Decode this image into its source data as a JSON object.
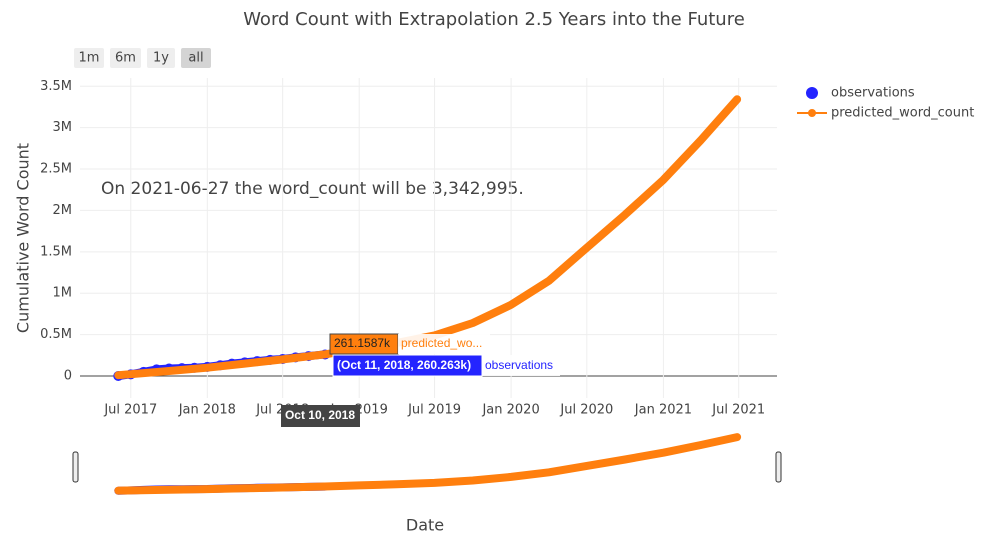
{
  "chart_data": {
    "type": "line",
    "title": "Word Count with Extrapolation 2.5 Years into the Future",
    "x_label": "Date",
    "y_label": "Cumulative Word Count",
    "annotation": "On 2021-06-27 the word_count will be 3,342,995.",
    "range_buttons": [
      "1m",
      "6m",
      "1y",
      "all"
    ],
    "series": [
      {
        "name": "observations",
        "color": "#2424ff",
        "x": [
          "2017-06",
          "2017-07",
          "2017-08",
          "2017-09",
          "2017-10",
          "2017-11",
          "2017-12",
          "2018-01",
          "2018-02",
          "2018-03",
          "2018-04",
          "2018-05",
          "2018-06",
          "2018-07",
          "2018-08",
          "2018-09",
          "2018-10-11"
        ],
        "values": [
          0,
          20000,
          50000,
          80000,
          90000,
          95000,
          100000,
          110000,
          130000,
          150000,
          165000,
          180000,
          195000,
          205000,
          225000,
          240000,
          260263
        ]
      },
      {
        "name": "predicted_word_count",
        "color": "#ff7f0e",
        "x": [
          "2017-06",
          "2017-10",
          "2018-01",
          "2018-04",
          "2018-07",
          "2018-10-10",
          "2019-01",
          "2019-04",
          "2019-07",
          "2019-10",
          "2020-01",
          "2020-04",
          "2020-07",
          "2020-10",
          "2021-01",
          "2021-04",
          "2021-06-27"
        ],
        "values": [
          10000,
          60000,
          100000,
          150000,
          200000,
          261159,
          330000,
          400000,
          490000,
          640000,
          860000,
          1150000,
          1550000,
          1950000,
          2370000,
          2850000,
          3342995
        ]
      }
    ],
    "hover": {
      "x_label": "Oct 10, 2018",
      "predicted_value": "261.1587k",
      "predicted_name": "predicted_wo...",
      "observation": "(Oct 11, 2018, 260.263k)",
      "observation_name": "observations"
    },
    "xlim": [
      "2017-03",
      "2021-10"
    ],
    "xticks": [
      {
        "value": "2017-07",
        "label": "Jul 2017"
      },
      {
        "value": "2018-01",
        "label": "Jan 2018"
      },
      {
        "value": "2018-07",
        "label": "Jul 2018"
      },
      {
        "value": "2019-01",
        "label": "Jan 2019"
      },
      {
        "value": "2019-07",
        "label": "Jul 2019"
      },
      {
        "value": "2020-01",
        "label": "Jan 2020"
      },
      {
        "value": "2020-07",
        "label": "Jul 2020"
      },
      {
        "value": "2021-01",
        "label": "Jan 2021"
      },
      {
        "value": "2021-07",
        "label": "Jul 2021"
      }
    ],
    "ylim": [
      -266000,
      3600000
    ],
    "yticks": [
      0,
      {
        "value": 500000,
        "label": "0.5M"
      },
      {
        "value": 1000000,
        "label": "1M"
      },
      {
        "value": 1500000,
        "label": "1.5M"
      },
      {
        "value": 2000000,
        "label": "2M"
      },
      {
        "value": 2500000,
        "label": "2.5M"
      },
      {
        "value": 3000000,
        "label": "3M"
      },
      {
        "value": 3500000,
        "label": "3.5M"
      }
    ],
    "grid": true
  }
}
